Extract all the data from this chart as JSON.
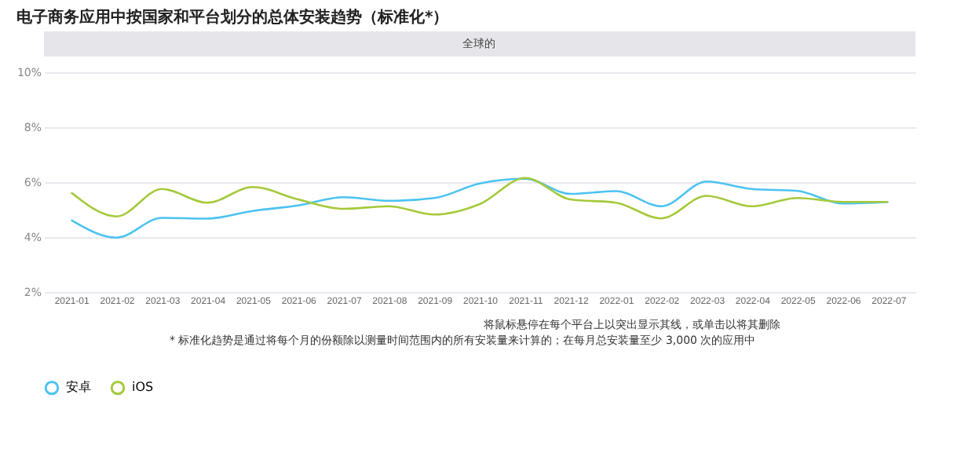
{
  "chart_data": {
    "type": "line",
    "title": "电子商务应用中按国家和平台划分的总体安装趋势（标准化*）",
    "subtitle": "全球的",
    "categories": [
      "2021-01",
      "2021-02",
      "2021-03",
      "2021-04",
      "2021-05",
      "2021-06",
      "2021-07",
      "2021-08",
      "2021-09",
      "2021-10",
      "2021-11",
      "2021-12",
      "2022-01",
      "2022-02",
      "2022-03",
      "2022-04",
      "2022-05",
      "2022-06",
      "2022-07"
    ],
    "series": [
      {
        "name": "安卓",
        "color": "#4cc3f0",
        "values": [
          4.62,
          3.98,
          4.7,
          4.67,
          4.95,
          5.15,
          5.45,
          5.32,
          5.42,
          5.95,
          6.12,
          5.57,
          5.67,
          5.12,
          6.02,
          5.75,
          5.68,
          5.22,
          5.28
        ]
      },
      {
        "name": "iOS",
        "color": "#a5c93a",
        "values": [
          5.62,
          4.75,
          5.75,
          5.25,
          5.82,
          5.37,
          5.03,
          5.12,
          4.82,
          5.2,
          6.15,
          5.37,
          5.25,
          4.68,
          5.5,
          5.12,
          5.42,
          5.28,
          5.28
        ]
      }
    ],
    "ylim": [
      2,
      10
    ],
    "yticks": [
      {
        "value": 2,
        "label": "2%"
      },
      {
        "value": 4,
        "label": "4%"
      },
      {
        "value": 6,
        "label": "6%"
      },
      {
        "value": 8,
        "label": "8%"
      },
      {
        "value": 10,
        "label": "10%"
      }
    ],
    "grid": "y",
    "legend": "bottom",
    "marker": "none",
    "line_style": "solid",
    "annotations": [
      "将鼠标悬停在每个平台上以突出显示其线，或单击以将其删除",
      "* 标准化趋势是通过将每个月的份额除以测量时间范围内的所有安装量来计算的；在每月总安装量至少 3,000 次的应用中"
    ]
  }
}
